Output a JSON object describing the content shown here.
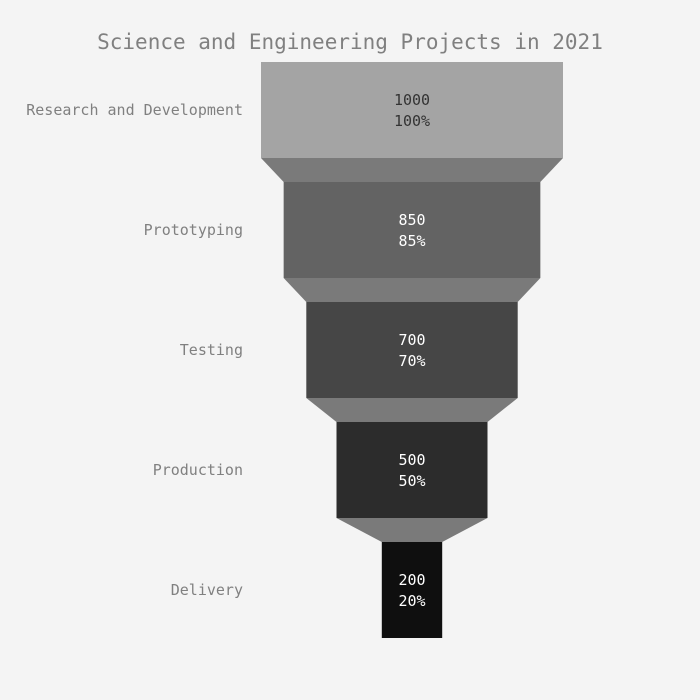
{
  "chart_data": {
    "type": "funnel",
    "title": "Science and Engineering Projects in 2021",
    "stages": [
      {
        "label": "Research and Development",
        "value": 1000,
        "percent": "100%",
        "color": "#a4a4a4",
        "text_color": "#333333"
      },
      {
        "label": "Prototyping",
        "value": 850,
        "percent": "85%",
        "color": "#636363",
        "text_color": "#ffffff"
      },
      {
        "label": "Testing",
        "value": 700,
        "percent": "70%",
        "color": "#464646",
        "text_color": "#ffffff"
      },
      {
        "label": "Production",
        "value": 500,
        "percent": "50%",
        "color": "#2c2c2c",
        "text_color": "#ffffff"
      },
      {
        "label": "Delivery",
        "value": 200,
        "percent": "20%",
        "color": "#0f0f0f",
        "text_color": "#ffffff"
      }
    ],
    "connector_color": "#7a7a7a",
    "background": "#f4f4f4"
  }
}
